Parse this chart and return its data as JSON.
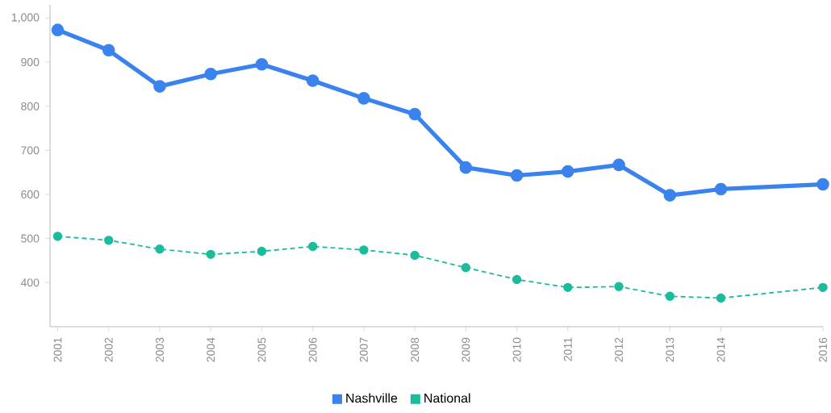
{
  "chart_data": {
    "type": "line",
    "x": [
      2001,
      2002,
      2003,
      2004,
      2005,
      2006,
      2007,
      2008,
      2009,
      2010,
      2011,
      2012,
      2013,
      2014,
      2016
    ],
    "series": [
      {
        "name": "Nashville",
        "color": "#3a82ee",
        "line_style": "solid",
        "values": [
          973,
          927,
          845,
          873,
          895,
          858,
          818,
          782,
          661,
          643,
          652,
          667,
          598,
          612,
          623
        ]
      },
      {
        "name": "National",
        "color": "#1abc9c",
        "line_style": "dashed",
        "values": [
          505,
          496,
          476,
          464,
          471,
          482,
          474,
          462,
          434,
          407,
          389,
          391,
          369,
          365,
          389
        ]
      }
    ],
    "xlim": [
      2000.85,
      2016
    ],
    "xticks": [
      2001,
      2002,
      2003,
      2004,
      2005,
      2006,
      2007,
      2008,
      2009,
      2010,
      2011,
      2012,
      2013,
      2014,
      2016
    ],
    "ylim": [
      300,
      1030
    ],
    "yticks": [
      400,
      500,
      600,
      700,
      800,
      900,
      {
        "value": 1000,
        "label": "1,000"
      }
    ],
    "marker": "circle",
    "grid": false,
    "legend": "bottom"
  }
}
